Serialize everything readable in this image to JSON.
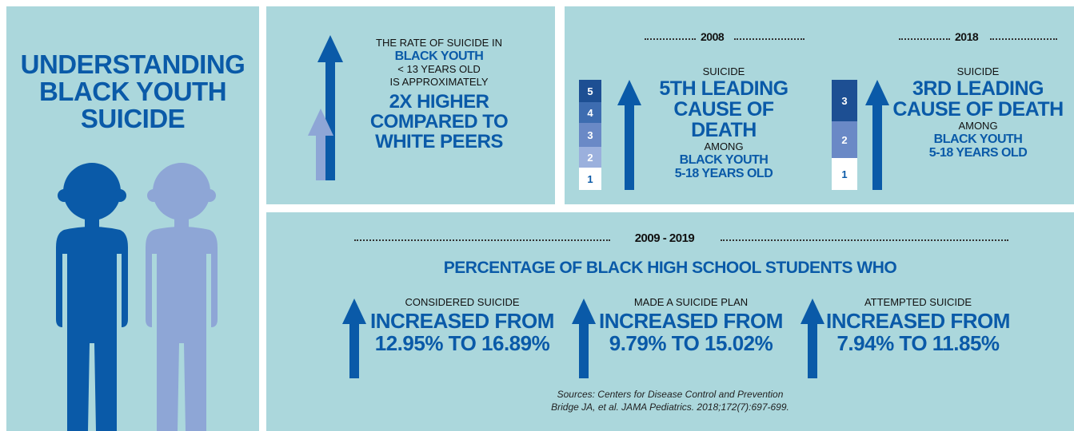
{
  "colors": {
    "panel": "#abd7dc",
    "primary_blue": "#0a5aa8",
    "light_blue": "#8ea6d6",
    "rank_5": "#1d4f93",
    "rank_4": "#3d6cb0",
    "rank_3": "#6a89c6",
    "rank_2": "#9bb0dd",
    "rank_1": "#ffffff"
  },
  "title": {
    "line1": "UNDERSTANDING",
    "line2": "BLACK YOUTH",
    "line3": "SUICIDE"
  },
  "figures": [
    "child-silhouette-dark",
    "child-silhouette-light"
  ],
  "rate_panel": {
    "line1": "THE RATE OF SUICIDE IN",
    "line2": "BLACK YOUTH",
    "line3": "< 13 YEARS OLD",
    "line4": "IS APPROXIMATELY",
    "line5": "2X HIGHER",
    "line6": "COMPARED TO",
    "line7": "WHITE PEERS"
  },
  "rank_2008": {
    "year": "2008",
    "stack": [
      "5",
      "4",
      "3",
      "2",
      "1"
    ],
    "label": "SUICIDE",
    "rank_line1": "5TH LEADING",
    "rank_line2": "CAUSE OF DEATH",
    "among": "AMONG",
    "group_line1": "BLACK YOUTH",
    "group_line2": "5-18 YEARS OLD"
  },
  "rank_2018": {
    "year": "2018",
    "stack": [
      "3",
      "2",
      "1"
    ],
    "label": "SUICIDE",
    "rank_line1": "3RD LEADING",
    "rank_line2": "CAUSE OF DEATH",
    "among": "AMONG",
    "group_line1": "BLACK YOUTH",
    "group_line2": "5-18 YEARS OLD"
  },
  "trend": {
    "years": "2009 - 2019",
    "heading": "PERCENTAGE OF BLACK HIGH SCHOOL STUDENTS WHO",
    "items": [
      {
        "label": "CONSIDERED SUICIDE",
        "change": "INCREASED FROM",
        "values": "12.95% TO 16.89%"
      },
      {
        "label": "MADE A SUICIDE PLAN",
        "change": "INCREASED FROM",
        "values": "9.79% TO 15.02%"
      },
      {
        "label": "ATTEMPTED SUICIDE",
        "change": "INCREASED FROM",
        "values": "7.94% TO 11.85%"
      }
    ]
  },
  "sources": {
    "line1": "Sources: Centers for Disease Control and Prevention",
    "line2": "Bridge JA, et al. JAMA Pediatrics. 2018;172(7):697-699."
  }
}
